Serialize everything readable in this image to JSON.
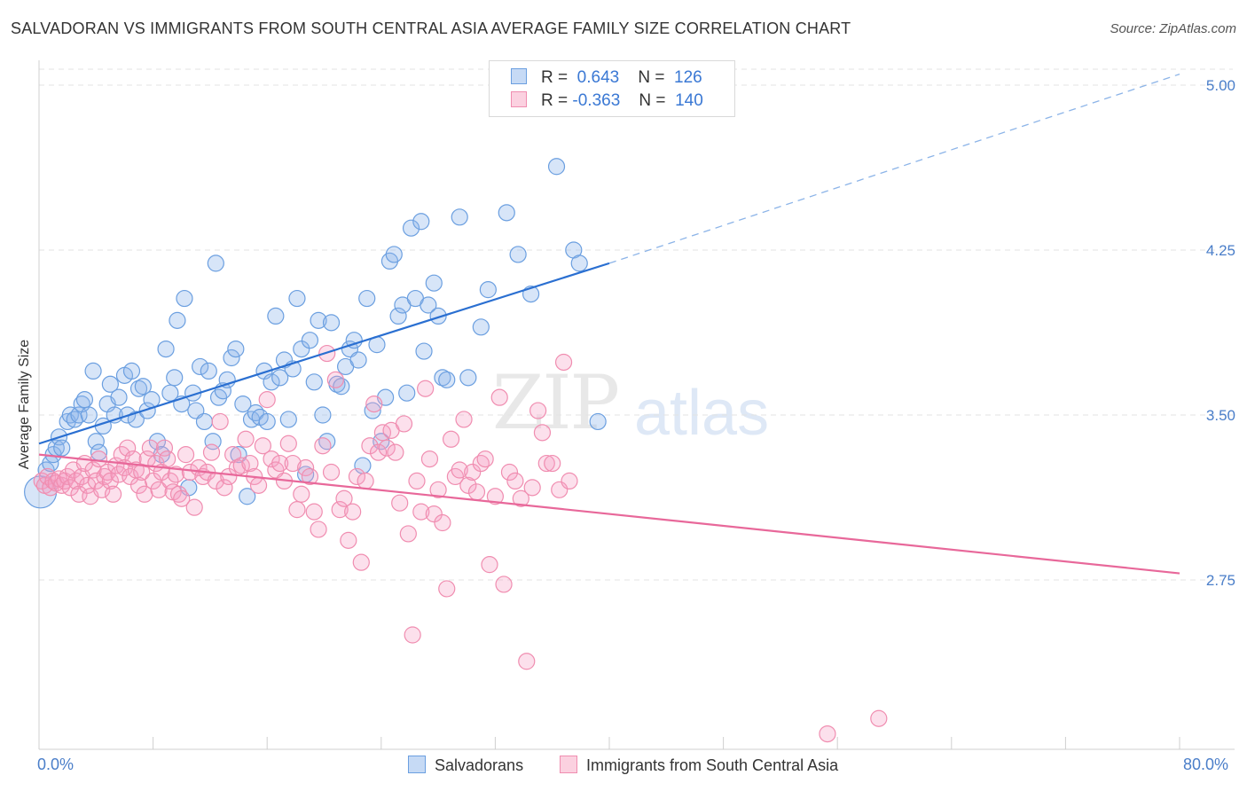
{
  "title": "SALVADORAN VS IMMIGRANTS FROM SOUTH CENTRAL ASIA AVERAGE FAMILY SIZE CORRELATION CHART",
  "source": "Source: ZipAtlas.com",
  "watermark": {
    "zip": "ZIP",
    "atlas": "atlas"
  },
  "legend": {
    "series1": {
      "r_label": "R =",
      "r_value": "0.643",
      "n_label": "N =",
      "n_value": "126"
    },
    "series2": {
      "r_label": "R =",
      "r_value": "-0.363",
      "n_label": "N =",
      "n_value": "140"
    }
  },
  "colors": {
    "blue": "#6b9fe0",
    "blue_line": "#2a6fd1",
    "pink": "#f08db0",
    "pink_line": "#e8689a",
    "tick": "#4a7ec9"
  },
  "chart_data": {
    "type": "scatter",
    "title": "SALVADORAN VS IMMIGRANTS FROM SOUTH CENTRAL ASIA AVERAGE FAMILY SIZE CORRELATION CHART",
    "xlabel": "",
    "ylabel": "Average Family Size",
    "xlim": [
      0,
      80
    ],
    "ylim": [
      2.0,
      5.1
    ],
    "x_tick_labels": [
      "0.0%",
      "80.0%"
    ],
    "y_ticks": [
      2.75,
      3.5,
      4.25,
      5.0
    ],
    "y_tick_labels": [
      "2.75",
      "3.50",
      "4.25",
      "5.00"
    ],
    "grid": true,
    "legend_position": "top-center",
    "series": [
      {
        "name": "Salvadorans",
        "color": "#6b9fe0",
        "trend": {
          "x": [
            0,
            40
          ],
          "y": [
            3.37,
            4.19
          ],
          "dashed_to": [
            80,
            5.05
          ]
        },
        "points": [
          [
            0.1,
            3.15
          ],
          [
            0.5,
            3.25
          ],
          [
            0.8,
            3.28
          ],
          [
            1.0,
            3.32
          ],
          [
            1.2,
            3.35
          ],
          [
            1.4,
            3.4
          ],
          [
            1.6,
            3.35
          ],
          [
            2.0,
            3.47
          ],
          [
            2.2,
            3.5
          ],
          [
            2.5,
            3.48
          ],
          [
            2.8,
            3.5
          ],
          [
            3.0,
            3.55
          ],
          [
            3.2,
            3.57
          ],
          [
            3.5,
            3.5
          ],
          [
            3.8,
            3.7
          ],
          [
            4.0,
            3.38
          ],
          [
            4.2,
            3.33
          ],
          [
            4.5,
            3.45
          ],
          [
            4.8,
            3.55
          ],
          [
            5.0,
            3.64
          ],
          [
            5.3,
            3.5
          ],
          [
            5.6,
            3.58
          ],
          [
            6.0,
            3.68
          ],
          [
            6.2,
            3.5
          ],
          [
            6.5,
            3.7
          ],
          [
            6.8,
            3.48
          ],
          [
            7.0,
            3.62
          ],
          [
            7.3,
            3.63
          ],
          [
            7.6,
            3.52
          ],
          [
            7.9,
            3.57
          ],
          [
            8.3,
            3.38
          ],
          [
            8.6,
            3.32
          ],
          [
            8.9,
            3.8
          ],
          [
            9.2,
            3.6
          ],
          [
            9.5,
            3.67
          ],
          [
            9.7,
            3.93
          ],
          [
            10.0,
            3.55
          ],
          [
            10.2,
            4.03
          ],
          [
            10.5,
            3.17
          ],
          [
            10.8,
            3.6
          ],
          [
            11.0,
            3.52
          ],
          [
            11.3,
            3.72
          ],
          [
            11.6,
            3.47
          ],
          [
            11.9,
            3.7
          ],
          [
            12.2,
            3.38
          ],
          [
            12.4,
            4.19
          ],
          [
            12.6,
            3.58
          ],
          [
            12.9,
            3.61
          ],
          [
            13.2,
            3.66
          ],
          [
            13.5,
            3.76
          ],
          [
            13.8,
            3.8
          ],
          [
            14.0,
            3.32
          ],
          [
            14.3,
            3.55
          ],
          [
            14.6,
            3.13
          ],
          [
            14.9,
            3.48
          ],
          [
            15.2,
            3.51
          ],
          [
            15.5,
            3.49
          ],
          [
            15.8,
            3.7
          ],
          [
            16.0,
            3.47
          ],
          [
            16.3,
            3.65
          ],
          [
            16.6,
            3.95
          ],
          [
            16.9,
            3.67
          ],
          [
            17.2,
            3.75
          ],
          [
            17.5,
            3.48
          ],
          [
            17.8,
            3.71
          ],
          [
            18.1,
            4.03
          ],
          [
            18.4,
            3.8
          ],
          [
            18.7,
            3.23
          ],
          [
            19.0,
            3.84
          ],
          [
            19.3,
            3.65
          ],
          [
            19.6,
            3.93
          ],
          [
            19.9,
            3.5
          ],
          [
            20.2,
            3.38
          ],
          [
            20.5,
            3.92
          ],
          [
            20.9,
            3.64
          ],
          [
            21.2,
            3.63
          ],
          [
            21.5,
            3.72
          ],
          [
            21.8,
            3.8
          ],
          [
            22.1,
            3.84
          ],
          [
            22.4,
            3.75
          ],
          [
            22.7,
            3.27
          ],
          [
            23.0,
            4.03
          ],
          [
            23.4,
            3.52
          ],
          [
            23.7,
            3.82
          ],
          [
            24.0,
            3.38
          ],
          [
            24.3,
            3.58
          ],
          [
            24.6,
            4.2
          ],
          [
            24.9,
            4.23
          ],
          [
            25.2,
            3.95
          ],
          [
            25.5,
            4.0
          ],
          [
            25.8,
            3.6
          ],
          [
            26.1,
            4.35
          ],
          [
            26.4,
            4.03
          ],
          [
            26.8,
            4.38
          ],
          [
            27.0,
            3.79
          ],
          [
            27.3,
            4.0
          ],
          [
            27.7,
            4.1
          ],
          [
            28.0,
            3.95
          ],
          [
            28.3,
            3.67
          ],
          [
            28.6,
            3.66
          ],
          [
            29.5,
            4.4
          ],
          [
            30.1,
            3.67
          ],
          [
            31.0,
            3.9
          ],
          [
            31.5,
            4.07
          ],
          [
            32.8,
            4.42
          ],
          [
            33.6,
            4.23
          ],
          [
            34.5,
            4.05
          ],
          [
            36.3,
            4.63
          ],
          [
            37.5,
            4.25
          ],
          [
            37.9,
            4.19
          ],
          [
            39.2,
            3.47
          ]
        ]
      },
      {
        "name": "Immigrants from South Central Asia",
        "color": "#f08db0",
        "trend": {
          "x": [
            0,
            80
          ],
          "y": [
            3.32,
            2.78
          ]
        },
        "points": [
          [
            0.2,
            3.2
          ],
          [
            0.4,
            3.18
          ],
          [
            0.6,
            3.22
          ],
          [
            0.8,
            3.17
          ],
          [
            1.0,
            3.2
          ],
          [
            1.2,
            3.19
          ],
          [
            1.4,
            3.21
          ],
          [
            1.6,
            3.18
          ],
          [
            1.8,
            3.2
          ],
          [
            2.0,
            3.22
          ],
          [
            2.2,
            3.17
          ],
          [
            2.4,
            3.25
          ],
          [
            2.6,
            3.2
          ],
          [
            2.8,
            3.14
          ],
          [
            3.0,
            3.22
          ],
          [
            3.2,
            3.28
          ],
          [
            3.4,
            3.18
          ],
          [
            3.6,
            3.13
          ],
          [
            3.8,
            3.25
          ],
          [
            4.0,
            3.2
          ],
          [
            4.2,
            3.3
          ],
          [
            4.4,
            3.16
          ],
          [
            4.6,
            3.22
          ],
          [
            4.8,
            3.24
          ],
          [
            5.0,
            3.2
          ],
          [
            5.2,
            3.14
          ],
          [
            5.4,
            3.27
          ],
          [
            5.6,
            3.23
          ],
          [
            5.8,
            3.32
          ],
          [
            6.0,
            3.26
          ],
          [
            6.2,
            3.35
          ],
          [
            6.4,
            3.22
          ],
          [
            6.6,
            3.3
          ],
          [
            6.8,
            3.25
          ],
          [
            7.0,
            3.18
          ],
          [
            7.2,
            3.24
          ],
          [
            7.4,
            3.14
          ],
          [
            7.6,
            3.3
          ],
          [
            7.8,
            3.35
          ],
          [
            8.0,
            3.2
          ],
          [
            8.2,
            3.28
          ],
          [
            8.4,
            3.16
          ],
          [
            8.6,
            3.24
          ],
          [
            8.8,
            3.35
          ],
          [
            9.0,
            3.3
          ],
          [
            9.2,
            3.2
          ],
          [
            9.4,
            3.15
          ],
          [
            9.6,
            3.23
          ],
          [
            9.8,
            3.14
          ],
          [
            10.0,
            3.12
          ],
          [
            10.3,
            3.32
          ],
          [
            10.6,
            3.24
          ],
          [
            10.9,
            3.08
          ],
          [
            11.2,
            3.26
          ],
          [
            11.5,
            3.22
          ],
          [
            11.8,
            3.24
          ],
          [
            12.1,
            3.33
          ],
          [
            12.4,
            3.2
          ],
          [
            12.7,
            3.47
          ],
          [
            13.0,
            3.17
          ],
          [
            13.3,
            3.22
          ],
          [
            13.6,
            3.32
          ],
          [
            13.9,
            3.26
          ],
          [
            14.2,
            3.27
          ],
          [
            14.5,
            3.39
          ],
          [
            14.8,
            3.28
          ],
          [
            15.1,
            3.22
          ],
          [
            15.4,
            3.18
          ],
          [
            15.7,
            3.36
          ],
          [
            16.0,
            3.57
          ],
          [
            16.3,
            3.3
          ],
          [
            16.6,
            3.25
          ],
          [
            16.9,
            3.28
          ],
          [
            17.2,
            3.2
          ],
          [
            17.5,
            3.37
          ],
          [
            17.8,
            3.28
          ],
          [
            18.1,
            3.07
          ],
          [
            18.4,
            3.14
          ],
          [
            18.7,
            3.26
          ],
          [
            19.0,
            3.22
          ],
          [
            19.3,
            3.06
          ],
          [
            19.6,
            2.98
          ],
          [
            19.9,
            3.36
          ],
          [
            20.2,
            3.78
          ],
          [
            20.5,
            3.24
          ],
          [
            20.8,
            3.66
          ],
          [
            21.1,
            3.07
          ],
          [
            21.4,
            3.12
          ],
          [
            21.7,
            2.93
          ],
          [
            22.0,
            3.06
          ],
          [
            22.3,
            3.22
          ],
          [
            22.6,
            2.83
          ],
          [
            22.9,
            3.2
          ],
          [
            23.2,
            3.36
          ],
          [
            23.5,
            3.55
          ],
          [
            23.8,
            3.33
          ],
          [
            24.1,
            3.42
          ],
          [
            24.4,
            3.35
          ],
          [
            24.7,
            3.43
          ],
          [
            25.0,
            3.33
          ],
          [
            25.3,
            3.1
          ],
          [
            25.6,
            3.46
          ],
          [
            25.9,
            2.96
          ],
          [
            26.2,
            2.5
          ],
          [
            26.5,
            3.2
          ],
          [
            26.8,
            3.06
          ],
          [
            27.1,
            3.62
          ],
          [
            27.4,
            3.3
          ],
          [
            27.7,
            3.05
          ],
          [
            28.0,
            3.16
          ],
          [
            28.3,
            3.01
          ],
          [
            28.6,
            2.71
          ],
          [
            28.9,
            3.39
          ],
          [
            29.2,
            3.22
          ],
          [
            29.5,
            3.25
          ],
          [
            29.8,
            3.48
          ],
          [
            30.1,
            3.18
          ],
          [
            30.4,
            3.24
          ],
          [
            30.7,
            3.15
          ],
          [
            31.0,
            3.28
          ],
          [
            31.3,
            3.3
          ],
          [
            31.6,
            2.82
          ],
          [
            32.0,
            3.13
          ],
          [
            32.3,
            3.58
          ],
          [
            32.6,
            2.73
          ],
          [
            33.0,
            3.24
          ],
          [
            33.4,
            3.2
          ],
          [
            33.8,
            3.12
          ],
          [
            34.2,
            2.38
          ],
          [
            34.6,
            3.17
          ],
          [
            35.0,
            3.52
          ],
          [
            35.3,
            3.42
          ],
          [
            35.6,
            3.28
          ],
          [
            36.0,
            3.28
          ],
          [
            36.5,
            3.16
          ],
          [
            36.8,
            3.74
          ],
          [
            37.2,
            3.2
          ],
          [
            55.3,
            2.05
          ],
          [
            58.9,
            2.12
          ]
        ]
      }
    ]
  },
  "x_axis": {
    "left_label": "0.0%",
    "right_label": "80.0%"
  },
  "y_axis": {
    "label": "Average Family Size"
  },
  "bottom_legend": {
    "series1": "Salvadorans",
    "series2": "Immigrants from South Central Asia"
  }
}
